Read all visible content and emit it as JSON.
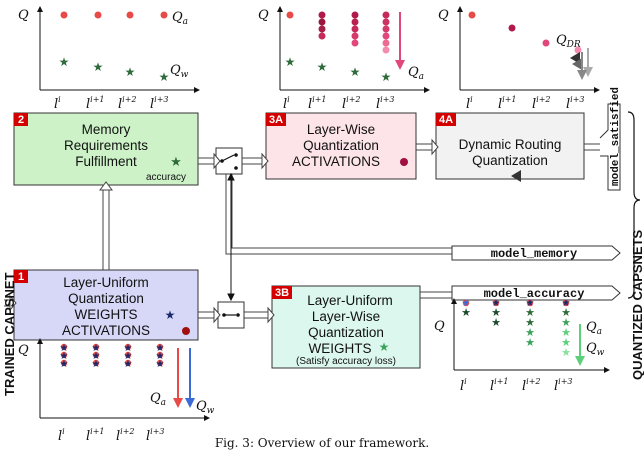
{
  "side_labels": {
    "left": "TRAINED CAPSNET",
    "right": "QUANTIZED CAPSNETS"
  },
  "blocks": {
    "b1": {
      "badge": "1",
      "lines": [
        "Layer-Uniform",
        "Quantization",
        "WEIGHTS",
        "ACTIVATIONS"
      ]
    },
    "b2": {
      "badge": "2",
      "lines": [
        "Memory",
        "Requirements",
        "Fulfillment"
      ],
      "note": "accuracy"
    },
    "b3a": {
      "badge": "3A",
      "lines": [
        "Layer-Wise",
        "Quantization",
        "ACTIVATIONS"
      ]
    },
    "b3b": {
      "badge": "3B",
      "lines": [
        "Layer-Uniform",
        "Layer-Wise",
        "Quantization",
        "WEIGHTS"
      ],
      "note": "(Satisfy accuracy loss)"
    },
    "b4a": {
      "badge": "4A",
      "lines": [
        "Dynamic Routing",
        "Quantization"
      ]
    }
  },
  "outputs": {
    "model_memory": "model_memory",
    "model_accuracy": "model_accuracy",
    "model_satisfied": "model_satisfied"
  },
  "axes": {
    "q": "Q",
    "qa": "Q",
    "qa_sub": "a",
    "qw": "Q",
    "qw_sub": "w",
    "qdr": "Q",
    "qdr_sub": "DR",
    "layer_base": "l",
    "layer_sups": [
      "i",
      "i+1",
      "i+2",
      "i+3"
    ]
  },
  "caption": "Fig. 3: Overview of our framework."
}
